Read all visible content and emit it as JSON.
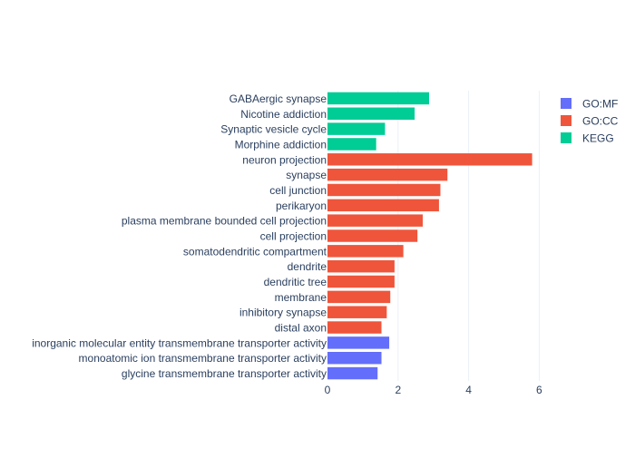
{
  "chart_data": {
    "type": "bar",
    "orientation": "horizontal",
    "categories": [
      "GABAergic synapse",
      "Nicotine addiction",
      "Synaptic vesicle cycle",
      "Morphine addiction",
      "neuron projection",
      "synapse",
      "cell junction",
      "perikaryon",
      "plasma membrane bounded cell projection",
      "cell projection",
      "somatodendritic compartment",
      "dendrite",
      "dendritic tree",
      "membrane",
      "inhibitory synapse",
      "distal axon",
      "inorganic molecular entity transmembrane transporter activity",
      "monoatomic ion transmembrane transporter activity",
      "glycine transmembrane transporter activity"
    ],
    "values": [
      2.88,
      2.47,
      1.63,
      1.38,
      5.8,
      3.4,
      3.2,
      3.16,
      2.7,
      2.55,
      2.15,
      1.9,
      1.9,
      1.78,
      1.68,
      1.53,
      1.75,
      1.53,
      1.42
    ],
    "groups": [
      "KEGG",
      "KEGG",
      "KEGG",
      "KEGG",
      "GO:CC",
      "GO:CC",
      "GO:CC",
      "GO:CC",
      "GO:CC",
      "GO:CC",
      "GO:CC",
      "GO:CC",
      "GO:CC",
      "GO:CC",
      "GO:CC",
      "GO:CC",
      "GO:MF",
      "GO:MF",
      "GO:MF"
    ],
    "series": [
      {
        "name": "GO:MF",
        "color": "#636efa"
      },
      {
        "name": "GO:CC",
        "color": "#ef553b"
      },
      {
        "name": "KEGG",
        "color": "#00cc96"
      }
    ],
    "xticks": [
      "0",
      "2",
      "4",
      "6"
    ],
    "xlim": [
      0,
      6.35
    ],
    "grid": true,
    "legend_position": "top-right",
    "title": "",
    "xlabel": "",
    "ylabel": ""
  }
}
